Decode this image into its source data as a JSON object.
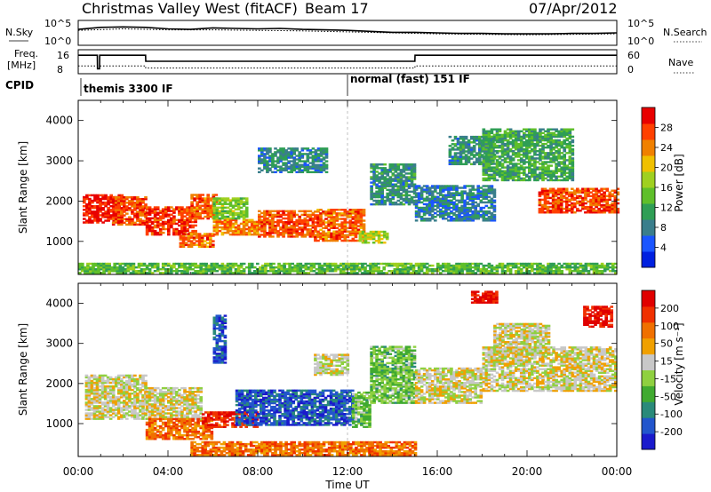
{
  "header": {
    "station": "Christmas Valley West (fitACF)",
    "beam": "Beam 17",
    "date": "07/Apr/2012"
  },
  "chart_data": [
    {
      "type": "line",
      "panel": "noise",
      "labels": {
        "left": "N.Sky",
        "right": "N.Search"
      },
      "y_ticks_left": [
        "10^5",
        "10^0"
      ],
      "y_ticks_right": [
        "10^5",
        "10^0"
      ],
      "series": [
        {
          "name": "N.Sky",
          "x": [
            0,
            1,
            2,
            3,
            4,
            5,
            6,
            7,
            8,
            9,
            10,
            11,
            12,
            13,
            14,
            15,
            16,
            17,
            18,
            19,
            20,
            21,
            22,
            23,
            24
          ],
          "values": [
            3.2,
            3.6,
            3.7,
            3.6,
            3.3,
            3.2,
            3.5,
            3.4,
            3.3,
            3.4,
            3.2,
            3.1,
            3.0,
            2.8,
            2.6,
            2.6,
            2.5,
            2.4,
            2.4,
            2.3,
            2.3,
            2.3,
            2.4,
            2.4,
            2.5
          ]
        },
        {
          "name": "N.Search",
          "x": [
            0,
            2,
            4,
            6,
            8,
            10,
            12,
            14,
            16,
            18,
            20,
            22,
            24
          ],
          "values": [
            3.0,
            3.3,
            3.1,
            3.1,
            3.0,
            2.9,
            2.7,
            2.5,
            2.3,
            2.2,
            2.1,
            2.2,
            2.3
          ]
        }
      ]
    },
    {
      "type": "line",
      "panel": "frequency",
      "labels": {
        "left_top": "Freq.",
        "left_bottom": "[MHz]",
        "right": "Nave"
      },
      "y_ticks_left": [
        "16",
        "8"
      ],
      "y_ticks_right": [
        "60",
        "0"
      ],
      "series": [
        {
          "name": "Freq",
          "x": [
            0,
            0.85,
            0.86,
            0.95,
            0.96,
            3.0,
            3.01,
            15.0,
            15.01,
            24
          ],
          "values": [
            14.8,
            14.8,
            9.0,
            9.0,
            14.8,
            14.8,
            12.2,
            12.2,
            14.8,
            14.8
          ]
        },
        {
          "name": "Nave",
          "x": [
            0,
            3.0,
            3.01,
            15.0,
            15.01,
            24
          ],
          "values": [
            22,
            22,
            16,
            16,
            22,
            22
          ]
        }
      ]
    },
    {
      "type": "table",
      "panel": "cpid",
      "label": "CPID",
      "segments": [
        {
          "start": 0,
          "end": 12,
          "text": "themis 3300 IF"
        },
        {
          "start": 12,
          "end": 24,
          "text": "normal (fast) 151 IF"
        }
      ]
    },
    {
      "type": "heatmap",
      "panel": "power",
      "ylabel": "Slant Range [km]",
      "xlim": [
        0,
        24
      ],
      "ylim": [
        180,
        4500
      ],
      "y_ticks": [
        1000,
        2000,
        3000,
        4000
      ],
      "colorbar": {
        "label": "Power [dB]",
        "ticks": [
          "4",
          "8",
          "12",
          "16",
          "20",
          "24",
          "28"
        ],
        "colors": [
          "#0020e0",
          "#1a55ff",
          "#3a7e8c",
          "#2f9e55",
          "#5fbf2a",
          "#9fd020",
          "#f0c000",
          "#f08000",
          "#ff4000",
          "#e80000"
        ]
      },
      "regions": [
        {
          "t0": 0.2,
          "t1": 2.0,
          "r0": 1450,
          "r1": 2150,
          "level": 8.8
        },
        {
          "t0": 1.5,
          "t1": 3.0,
          "r0": 1400,
          "r1": 2100,
          "level": 8.0
        },
        {
          "t0": 3.0,
          "t1": 5.2,
          "r0": 1150,
          "r1": 1850,
          "level": 8.3
        },
        {
          "t0": 5.0,
          "t1": 6.2,
          "r0": 1550,
          "r1": 2150,
          "level": 7.5
        },
        {
          "t0": 4.5,
          "t1": 6.0,
          "r0": 850,
          "r1": 1200,
          "level": 7.5
        },
        {
          "t0": 6.0,
          "t1": 8.0,
          "r0": 1150,
          "r1": 1550,
          "level": 7.0
        },
        {
          "t0": 6.0,
          "t1": 7.5,
          "r0": 1550,
          "r1": 2050,
          "level": 4.5
        },
        {
          "t0": 8.0,
          "t1": 10.5,
          "r0": 1100,
          "r1": 1750,
          "level": 7.8
        },
        {
          "t0": 10.5,
          "t1": 12.7,
          "r0": 1000,
          "r1": 1800,
          "level": 7.5
        },
        {
          "t0": 12.5,
          "t1": 13.8,
          "r0": 950,
          "r1": 1250,
          "level": 5.0
        },
        {
          "t0": 13.0,
          "t1": 15.0,
          "r0": 1900,
          "r1": 2900,
          "level": 2.5
        },
        {
          "t0": 8.0,
          "t1": 11.0,
          "r0": 2700,
          "r1": 3300,
          "level": 2.3
        },
        {
          "t0": 15.0,
          "t1": 18.5,
          "r0": 1500,
          "r1": 2400,
          "level": 2.0
        },
        {
          "t0": 16.5,
          "t1": 18.5,
          "r0": 2900,
          "r1": 3600,
          "level": 2.5
        },
        {
          "t0": 18.0,
          "t1": 22.0,
          "r0": 2500,
          "r1": 3800,
          "level": 3.2
        },
        {
          "t0": 20.5,
          "t1": 24.0,
          "r0": 1700,
          "r1": 2300,
          "level": 8.0
        },
        {
          "t0": 0.0,
          "t1": 24.0,
          "r0": 200,
          "r1": 450,
          "level": 3.8
        }
      ]
    },
    {
      "type": "heatmap",
      "panel": "velocity",
      "ylabel": "Slant Range [km]",
      "xlabel": "Time UT",
      "xlim": [
        0,
        24
      ],
      "ylim": [
        180,
        4500
      ],
      "y_ticks": [
        1000,
        2000,
        3000,
        4000
      ],
      "x_ticks": [
        "00:00",
        "04:00",
        "08:00",
        "12:00",
        "16:00",
        "20:00",
        "00:00"
      ],
      "colorbar": {
        "label": "Velocity [m s⁻¹]",
        "ticks": [
          "200",
          "100",
          "50",
          "15",
          "-15",
          "-50",
          "-100",
          "-200"
        ],
        "colors": [
          "#1a1acc",
          "#2255cc",
          "#2a8a7a",
          "#40aa30",
          "#8fd040",
          "#c8c8c8",
          "#f0a000",
          "#f07000",
          "#f03000",
          "#e00000"
        ]
      },
      "regions": [
        {
          "t0": 0.3,
          "t1": 3.0,
          "r0": 1100,
          "r1": 2200,
          "level": 5.0
        },
        {
          "t0": 3.0,
          "t1": 5.5,
          "r0": 1100,
          "r1": 1900,
          "level": 5.0
        },
        {
          "t0": 3.0,
          "t1": 6.0,
          "r0": 600,
          "r1": 1100,
          "level": 7.0
        },
        {
          "t0": 5.5,
          "t1": 8.0,
          "r0": 900,
          "r1": 1300,
          "level": 8.5
        },
        {
          "t0": 6.0,
          "t1": 6.6,
          "r0": 2500,
          "r1": 3700,
          "level": 1.0
        },
        {
          "t0": 7.0,
          "t1": 12.2,
          "r0": 950,
          "r1": 1850,
          "level": 1.0
        },
        {
          "t0": 12.2,
          "t1": 13.0,
          "r0": 900,
          "r1": 1800,
          "level": 3.5
        },
        {
          "t0": 13.0,
          "t1": 15.0,
          "r0": 1500,
          "r1": 2900,
          "level": 3.5
        },
        {
          "t0": 10.5,
          "t1": 12.0,
          "r0": 2200,
          "r1": 2700,
          "level": 5.0
        },
        {
          "t0": 15.0,
          "t1": 18.0,
          "r0": 1500,
          "r1": 2400,
          "level": 5.0
        },
        {
          "t0": 18.0,
          "t1": 24.0,
          "r0": 1800,
          "r1": 2900,
          "level": 5.0
        },
        {
          "t0": 18.5,
          "t1": 21.0,
          "r0": 2700,
          "r1": 3500,
          "level": 5.0
        },
        {
          "t0": 22.5,
          "t1": 23.8,
          "r0": 3400,
          "r1": 3900,
          "level": 9.0
        },
        {
          "t0": 17.5,
          "t1": 18.6,
          "r0": 4000,
          "r1": 4300,
          "level": 9.0
        },
        {
          "t0": 5.0,
          "t1": 15.0,
          "r0": 200,
          "r1": 550,
          "level": 7.0
        }
      ]
    }
  ]
}
